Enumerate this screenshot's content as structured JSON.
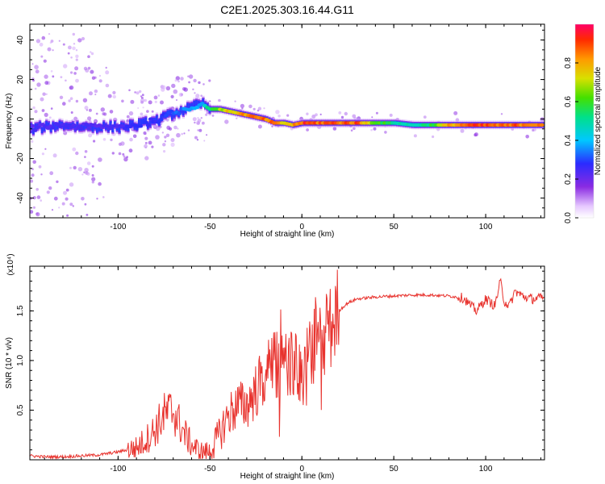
{
  "title": "C2E1.2025.303.16.44.G11",
  "colors": {
    "snr_line": "#e8332e",
    "ridge": "#ff1a1a",
    "axis": "#000000"
  },
  "chart_data": [
    {
      "type": "heatmap",
      "name": "spectrogram",
      "xlabel": "Height of straight line (km)",
      "ylabel": "Frequency (Hz)",
      "xlim": [
        -148,
        132
      ],
      "ylim": [
        -50,
        48
      ],
      "xticks": [
        -100,
        -50,
        0,
        50,
        100
      ],
      "xtick_labels": [
        "-100",
        "-50",
        "0",
        "50",
        "100"
      ],
      "yticks": [
        -40,
        -20,
        0,
        20,
        40
      ],
      "ytick_labels": [
        "-40",
        "-20",
        "0",
        "20",
        "40"
      ],
      "colorbar": {
        "label": "Normalized spectral amplitude",
        "range": [
          0,
          1
        ],
        "ticks": [
          0,
          0.2,
          0.4,
          0.6,
          0.8
        ],
        "tick_labels": [
          "0.0",
          "0.2",
          "0.4",
          "0.6",
          "0.8"
        ]
      },
      "ridge": {
        "x": [
          -148,
          -140,
          -130,
          -120,
          -110,
          -100,
          -90,
          -80,
          -70,
          -60,
          -55,
          -50,
          -45,
          -40,
          -35,
          -30,
          -25,
          -20,
          -15,
          -10,
          -5,
          0,
          5,
          10,
          20,
          30,
          40,
          50,
          60,
          70,
          80,
          90,
          100,
          110,
          120,
          132
        ],
        "y": [
          -5,
          -4,
          -3,
          -4,
          -4,
          -4,
          -3,
          -1,
          3,
          6,
          8,
          5,
          5,
          4,
          3,
          2,
          1,
          0,
          -2,
          -2,
          -3,
          -2,
          -2,
          -2,
          -2,
          -2,
          -2,
          -2,
          -3,
          -3,
          -3,
          -3,
          -3,
          -3,
          -3,
          -3
        ],
        "amplitude": [
          0.25,
          0.25,
          0.25,
          0.25,
          0.25,
          0.25,
          0.3,
          0.3,
          0.35,
          0.4,
          0.4,
          0.6,
          0.7,
          0.8,
          0.85,
          0.9,
          0.9,
          0.9,
          0.9,
          0.8,
          0.85,
          0.95,
          0.95,
          0.95,
          0.95,
          0.95,
          0.7,
          0.55,
          0.5,
          0.6,
          0.85,
          0.95,
          0.95,
          0.9,
          0.95,
          0.95
        ]
      }
    },
    {
      "type": "line",
      "name": "snr",
      "xlabel": "Height of straight line (km)",
      "ylabel": "SNR (10 * v/v)",
      "scale_label": "(x10⁴)",
      "xlim": [
        -148,
        132
      ],
      "ylim": [
        0,
        1.95
      ],
      "xticks": [
        -100,
        -50,
        0,
        50,
        100
      ],
      "xtick_labels": [
        "-100",
        "-50",
        "0",
        "50",
        "100"
      ],
      "yticks": [
        0.5,
        1.0,
        1.5
      ],
      "ytick_labels": [
        "0.5",
        "1.0",
        "1.5"
      ],
      "x": [
        -148,
        -140,
        -130,
        -120,
        -110,
        -100,
        -90,
        -85,
        -80,
        -75,
        -70,
        -65,
        -60,
        -55,
        -50,
        -45,
        -40,
        -35,
        -30,
        -25,
        -20,
        -15,
        -10,
        -5,
        0,
        5,
        10,
        15,
        20,
        25,
        30,
        40,
        50,
        60,
        70,
        80,
        88,
        92,
        95,
        100,
        105,
        108,
        110,
        113,
        116,
        120,
        125,
        132
      ],
      "y": [
        0.04,
        0.03,
        0.03,
        0.04,
        0.05,
        0.08,
        0.12,
        0.2,
        0.3,
        0.45,
        0.5,
        0.3,
        0.15,
        0.08,
        0.08,
        0.25,
        0.45,
        0.55,
        0.55,
        0.7,
        0.85,
        0.95,
        0.9,
        1.0,
        0.8,
        1.1,
        1.2,
        1.3,
        1.5,
        1.58,
        1.62,
        1.64,
        1.65,
        1.66,
        1.66,
        1.65,
        1.63,
        1.55,
        1.5,
        1.62,
        1.55,
        1.8,
        1.6,
        1.55,
        1.7,
        1.65,
        1.62,
        1.63
      ]
    }
  ]
}
